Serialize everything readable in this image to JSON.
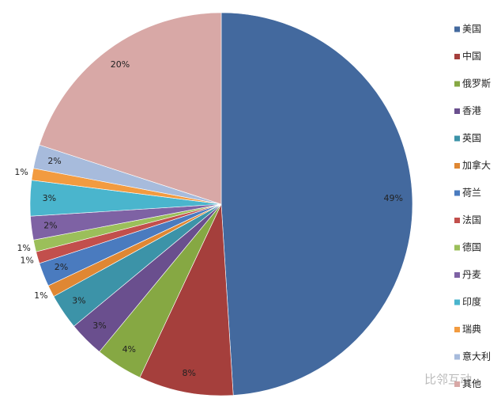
{
  "chart_data": {
    "type": "pie",
    "categories": [
      "美国",
      "中国",
      "俄罗斯",
      "香港",
      "英国",
      "加拿大",
      "荷兰",
      "法国",
      "德国",
      "丹麦",
      "印度",
      "瑞典",
      "意大利",
      "其他"
    ],
    "values": [
      49,
      8,
      4,
      3,
      3,
      1,
      2,
      1,
      1,
      2,
      3,
      1,
      2,
      20
    ],
    "value_labels": [
      "49%",
      "8%",
      "4%",
      "3%",
      "3%",
      "1%",
      "2%",
      "1%",
      "1%",
      "2%",
      "3%",
      "1%",
      "2%",
      "20%"
    ],
    "colors": [
      "#43699e",
      "#a53f3c",
      "#86a843",
      "#6a4f8e",
      "#3c93a8",
      "#df8733",
      "#4a7bbf",
      "#c24f4c",
      "#9bbf5a",
      "#7e62a4",
      "#4ab5cd",
      "#f29b40",
      "#a7bbdc",
      "#d8a8a6"
    ],
    "legend": "right"
  },
  "watermark": "比邻互动"
}
